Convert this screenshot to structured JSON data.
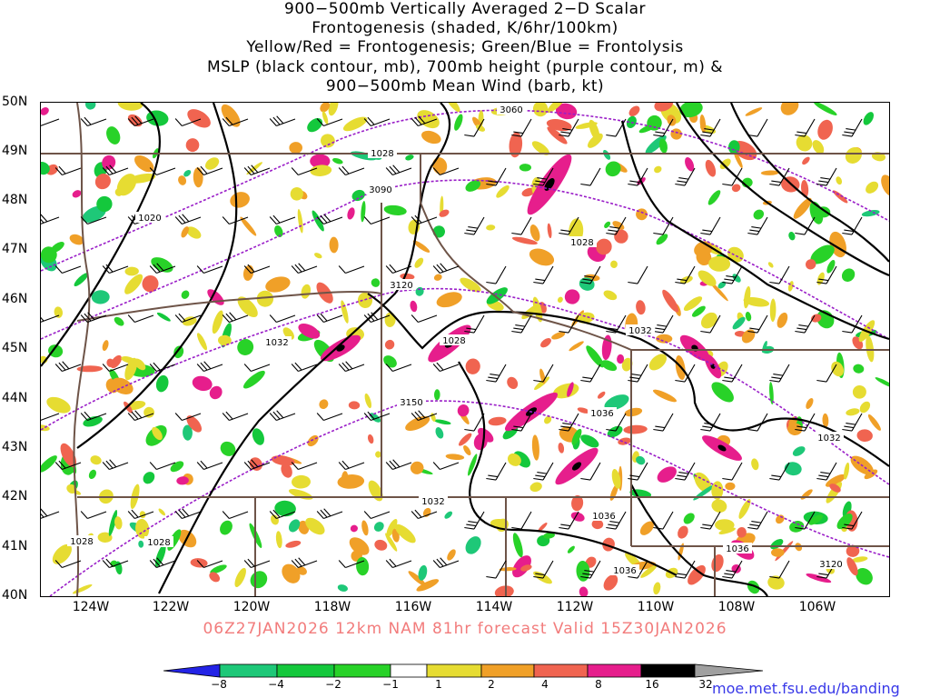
{
  "title_lines": [
    "900−500mb Vertically Averaged 2−D Scalar",
    "Frontogenesis (shaded, K/6hr/100km)",
    "Yellow/Red = Frontogenesis;  Green/Blue = Frontolysis",
    "MSLP (black contour, mb), 700mb height (purple contour, m) &",
    "900−500mb Mean Wind (barb, kt)"
  ],
  "lat_labels": [
    "50N",
    "49N",
    "48N",
    "47N",
    "46N",
    "45N",
    "44N",
    "43N",
    "42N",
    "41N",
    "40N"
  ],
  "lon_labels": [
    "124W",
    "122W",
    "120W",
    "118W",
    "116W",
    "114W",
    "112W",
    "110W",
    "108W",
    "106W"
  ],
  "valid_line": "06Z27JAN2026 12km NAM 81hr forecast Valid 15Z30JAN2026",
  "colorbar": {
    "labels": [
      "−8",
      "−4",
      "−2",
      "−1",
      "1",
      "2",
      "4",
      "8",
      "16",
      "32"
    ],
    "colors": [
      "#2323e6",
      "#1ec878",
      "#14c83c",
      "#28d228",
      "#ffffff",
      "#e6dc32",
      "#f0a028",
      "#f06450",
      "#e61e8c",
      "#000000",
      "#a0a0a0"
    ]
  },
  "contour_labels": {
    "mslp": [
      "1028",
      "1028",
      "1032",
      "1032",
      "1028",
      "1036",
      "1032",
      "1036",
      "1036",
      "1036",
      "1028",
      "1032",
      "1028",
      "1020"
    ],
    "height": [
      "3060",
      "3090",
      "3120",
      "3150",
      "3120"
    ]
  },
  "credit": "moe.met.fsu.edu/banding",
  "colors": {
    "state_borders": "#6e5448",
    "mslp": "#000000",
    "height": "#9a1ec8",
    "valid": "#f27c7c",
    "credit": "#3838e8"
  }
}
